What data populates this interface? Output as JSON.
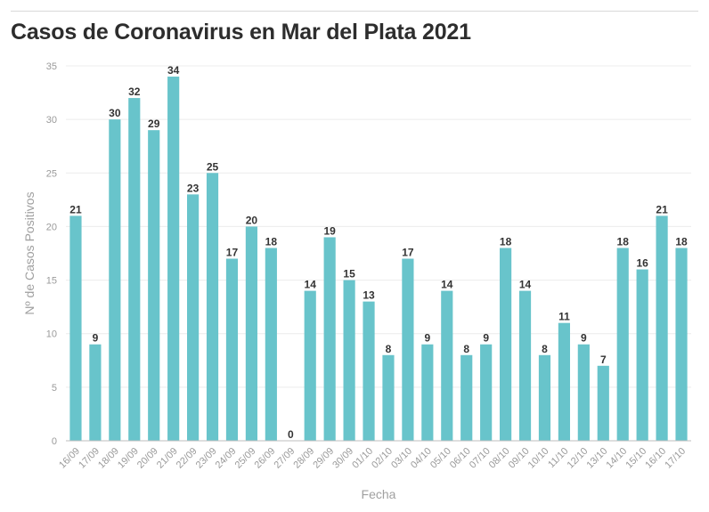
{
  "title": "Casos de Coronavirus en Mar del Plata 2021",
  "colors": {
    "bar": "#68c4cb",
    "grid": "#ececec",
    "axis": "#bdbdbd"
  },
  "chart_data": {
    "type": "bar",
    "title": "Casos de Coronavirus en Mar del Plata 2021",
    "xlabel": "Fecha",
    "ylabel": "Nº de Casos Positivos",
    "ylim": [
      0,
      35
    ],
    "yticks": [
      0,
      5,
      10,
      15,
      20,
      25,
      30,
      35
    ],
    "grid": true,
    "categories": [
      "16/09",
      "17/09",
      "18/09",
      "19/09",
      "20/09",
      "21/09",
      "22/09",
      "23/09",
      "24/09",
      "25/09",
      "26/09",
      "27/09",
      "28/09",
      "29/09",
      "30/09",
      "01/10",
      "02/10",
      "03/10",
      "04/10",
      "05/10",
      "06/10",
      "07/10",
      "08/10",
      "09/10",
      "10/10",
      "11/10",
      "12/10",
      "13/10",
      "14/10",
      "15/10",
      "16/10",
      "17/10"
    ],
    "values": [
      21,
      9,
      30,
      32,
      29,
      34,
      23,
      25,
      17,
      20,
      18,
      0,
      14,
      19,
      15,
      13,
      8,
      17,
      9,
      14,
      8,
      9,
      18,
      14,
      8,
      11,
      9,
      7,
      18,
      16,
      21,
      18
    ]
  }
}
